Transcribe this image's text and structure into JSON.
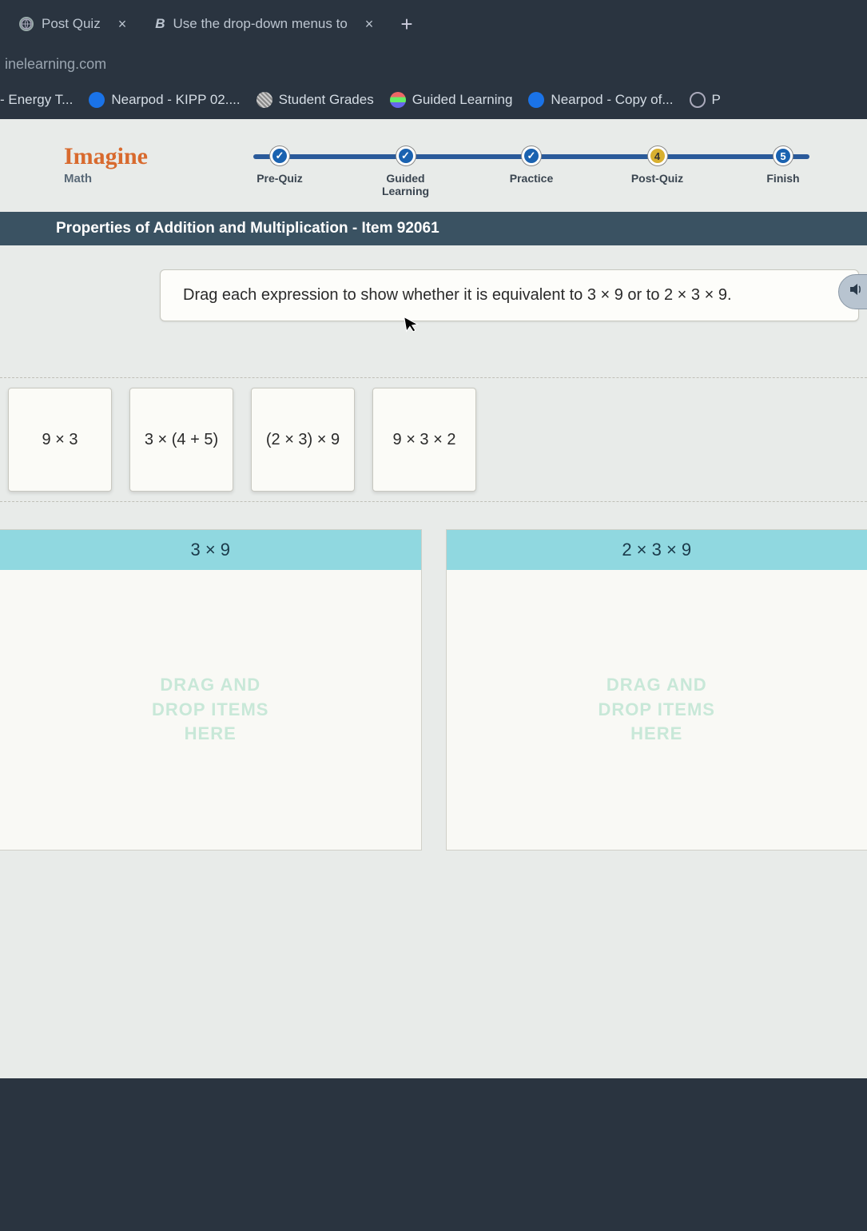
{
  "browser": {
    "tabs": [
      {
        "title": "Post Quiz",
        "favicon": "globe"
      },
      {
        "title": "Use the drop-down menus to",
        "favicon": "B"
      }
    ],
    "url": "inelearning.com",
    "bookmarks": [
      {
        "label": "- Energy T...",
        "icon": "none"
      },
      {
        "label": "Nearpod - KIPP 02....",
        "icon": "blue"
      },
      {
        "label": "Student Grades",
        "icon": "stripes"
      },
      {
        "label": "Guided Learning",
        "icon": "bars"
      },
      {
        "label": "Nearpod - Copy of...",
        "icon": "blue"
      },
      {
        "label": "P",
        "icon": "globe"
      }
    ]
  },
  "app": {
    "logo": {
      "main": "Imagine",
      "sub": "Math"
    },
    "progress": {
      "steps": [
        {
          "label": "Pre-Quiz",
          "state": "done",
          "mark": "✓"
        },
        {
          "label": "Guided Learning",
          "state": "done",
          "mark": "✓"
        },
        {
          "label": "Practice",
          "state": "done",
          "mark": "✓"
        },
        {
          "label": "Post-Quiz",
          "state": "current",
          "mark": "4"
        },
        {
          "label": "Finish",
          "state": "pending",
          "mark": "5"
        }
      ]
    },
    "item_bar": "Properties of Addition and Multiplication - Item 92061",
    "instruction": "Drag each expression to show whether it is equivalent to 3 × 9 or to 2 × 3 × 9.",
    "tiles": [
      "9 × 3",
      "3 × (4 + 5)",
      "(2 × 3) × 9",
      "9 × 3 × 2"
    ],
    "drop_zones": [
      {
        "header": "3 × 9",
        "placeholder": "DRAG AND\nDROP ITEMS\nHERE"
      },
      {
        "header": "2 × 3 × 9",
        "placeholder": "DRAG AND\nDROP ITEMS\nHERE"
      }
    ],
    "colors": {
      "chrome_bg": "#2a3440",
      "app_bg": "#e8ebe9",
      "logo_orange": "#d86a2e",
      "progress_blue": "#1a62b0",
      "progress_gold": "#d8b030",
      "item_bar_bg": "#3a5262",
      "drop_header_bg": "#90d8e0",
      "placeholder_color": "#c8e8d8"
    }
  }
}
